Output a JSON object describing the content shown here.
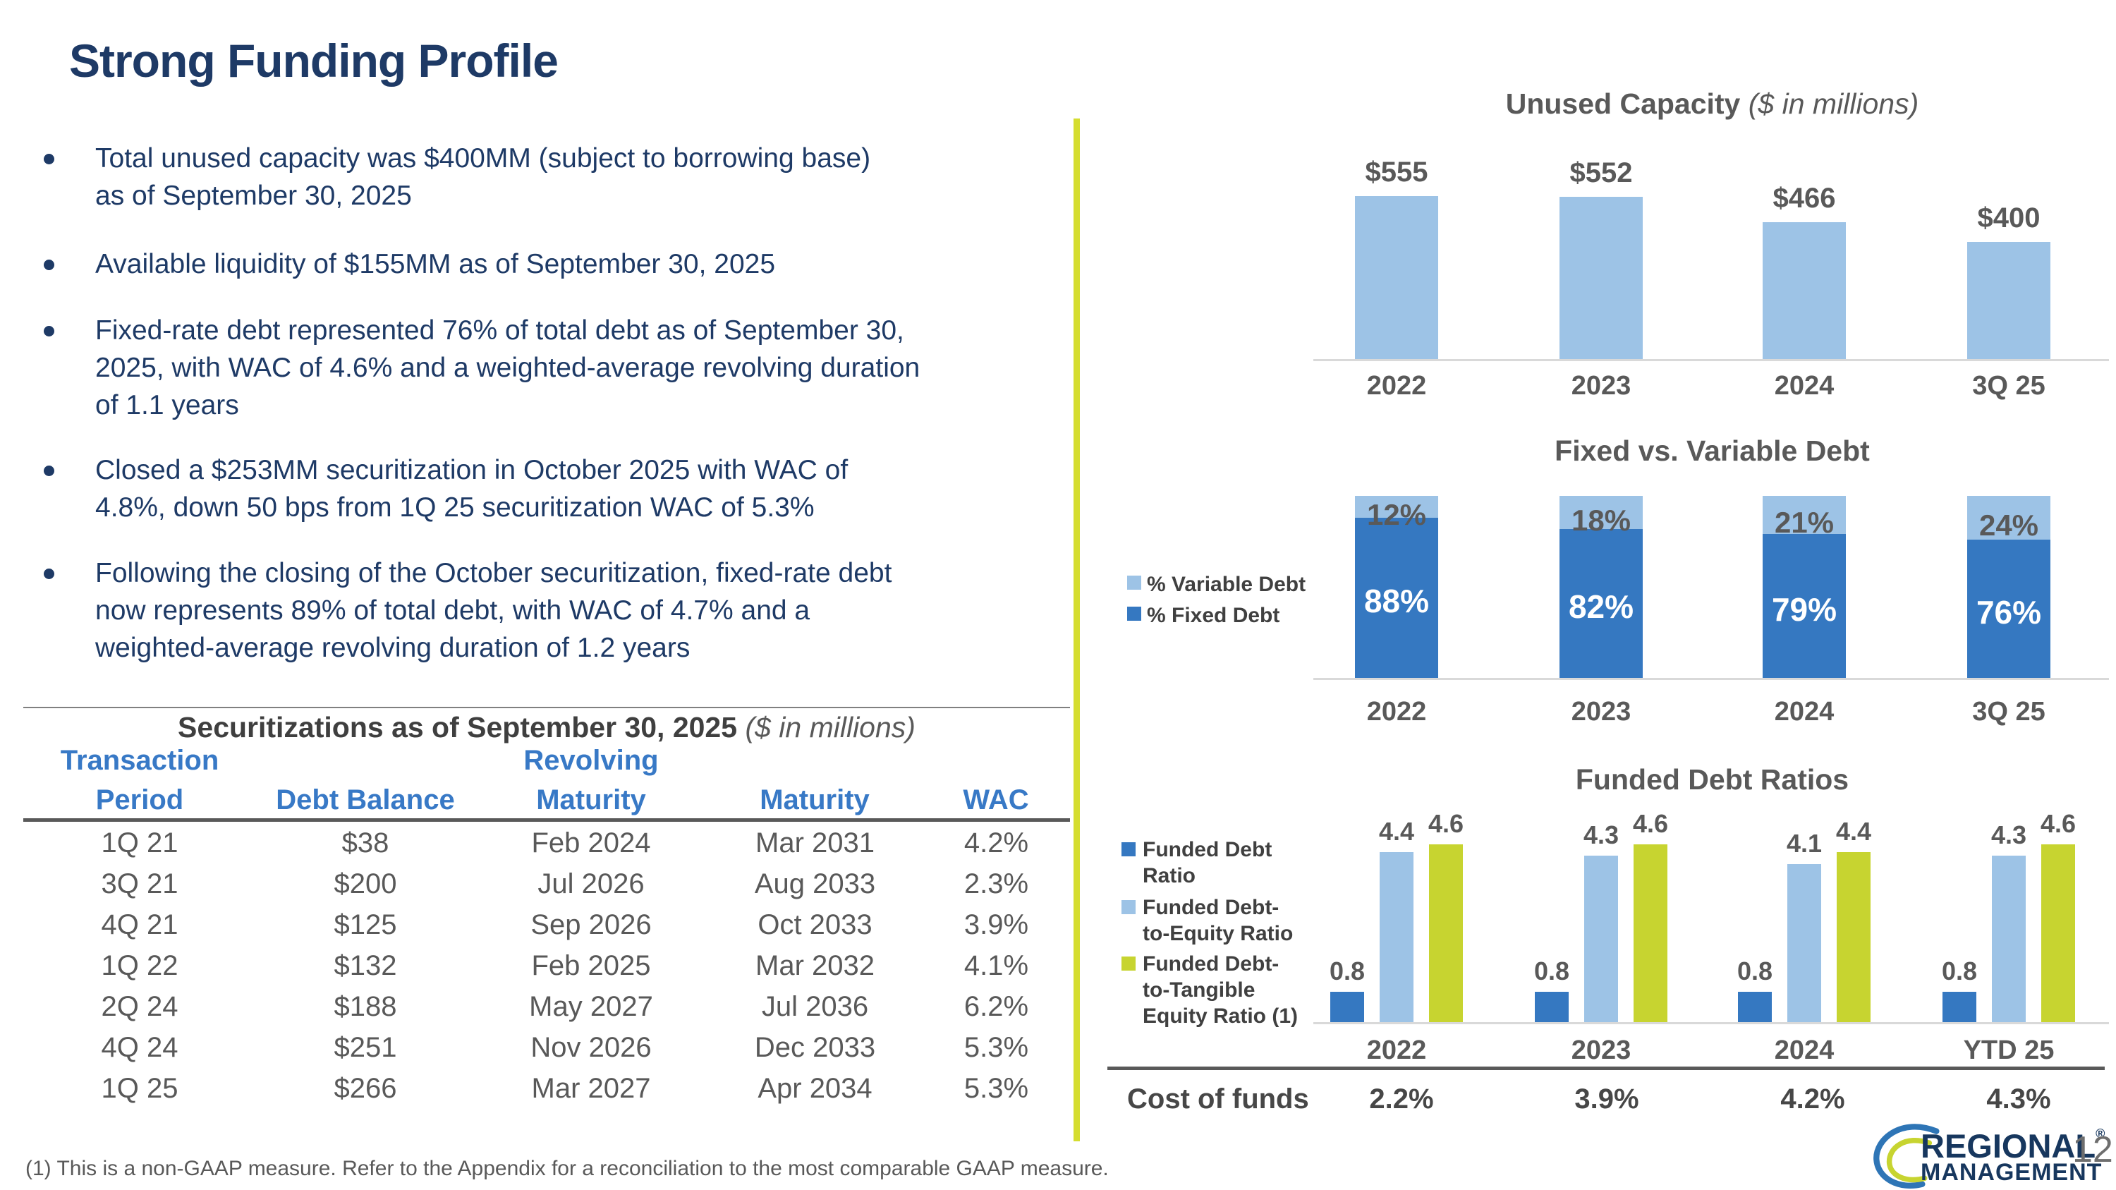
{
  "slide": {
    "title": "Strong Funding Profile",
    "page_number": "12",
    "footnote": "(1) This is a non-GAAP measure. Refer to the Appendix for a reconciliation to the most comparable GAAP measure.",
    "logo": {
      "line1": "REGIONAL",
      "reg_mark": "®",
      "line2": "MANAGEMENT"
    }
  },
  "bullets": [
    {
      "lines": [
        "Total unused capacity was $400MM (subject to borrowing base)",
        "as of September 30, 2025"
      ]
    },
    {
      "lines": [
        "Available liquidity of $155MM as of September 30, 2025"
      ]
    },
    {
      "lines": [
        "Fixed-rate debt represented 76% of total debt as of September 30,",
        "2025, with WAC of 4.6% and a weighted-average revolving duration",
        "of 1.1 years"
      ]
    },
    {
      "lines": [
        "Closed a $253MM securitization in October 2025 with WAC of",
        "4.8%, down 50 bps from 1Q 25 securitization WAC of 5.3%"
      ]
    },
    {
      "lines": [
        "Following the closing of the October securitization, fixed-rate debt",
        "now represents 89% of total debt, with WAC of 4.7% and a",
        "weighted-average revolving duration of 1.2 years"
      ]
    }
  ],
  "securitizations_table": {
    "title": "Securitizations as of September 30, 2025",
    "title_suffix": " ($ in millions)",
    "headers": {
      "col1_line1": "Transaction",
      "col1_line2": "Period",
      "col2": "Debt Balance",
      "col3_line1": "Revolving",
      "col3_line2": "Maturity",
      "col4": "Maturity",
      "col5": "WAC"
    },
    "rows": [
      {
        "period": "1Q 21",
        "debt_balance": "$38",
        "revolving_maturity": "Feb 2024",
        "maturity": "Mar 2031",
        "wac": "4.2%"
      },
      {
        "period": "3Q 21",
        "debt_balance": "$200",
        "revolving_maturity": "Jul 2026",
        "maturity": "Aug 2033",
        "wac": "2.3%"
      },
      {
        "period": "4Q 21",
        "debt_balance": "$125",
        "revolving_maturity": "Sep 2026",
        "maturity": "Oct 2033",
        "wac": "3.9%"
      },
      {
        "period": "1Q 22",
        "debt_balance": "$132",
        "revolving_maturity": "Feb 2025",
        "maturity": "Mar 2032",
        "wac": "4.1%"
      },
      {
        "period": "2Q 24",
        "debt_balance": "$188",
        "revolving_maturity": "May 2027",
        "maturity": "Jul 2036",
        "wac": "6.2%"
      },
      {
        "period": "4Q 24",
        "debt_balance": "$251",
        "revolving_maturity": "Nov 2026",
        "maturity": "Dec 2033",
        "wac": "5.3%"
      },
      {
        "period": "1Q 25",
        "debt_balance": "$266",
        "revolving_maturity": "Mar 2027",
        "maturity": "Apr 2034",
        "wac": "5.3%"
      }
    ]
  },
  "chart_data": [
    {
      "id": "unused_capacity",
      "type": "bar",
      "title": "Unused Capacity",
      "title_suffix": " ($ in millions)",
      "categories": [
        "2022",
        "2023",
        "2024",
        "3Q 25"
      ],
      "values": [
        555,
        552,
        466,
        400
      ],
      "value_labels": [
        "$555",
        "$552",
        "$466",
        "$400"
      ],
      "bar_color": "#9DC3E6",
      "ylim": [
        0,
        600
      ],
      "gridlines": false,
      "legend": "none"
    },
    {
      "id": "fixed_vs_variable",
      "type": "stacked-bar",
      "title": "Fixed vs. Variable Debt",
      "categories": [
        "2022",
        "2023",
        "2024",
        "3Q 25"
      ],
      "series": [
        {
          "name": "% Variable Debt",
          "color": "#9DC3E6",
          "values": [
            12,
            18,
            21,
            24
          ],
          "value_labels": [
            "12%",
            "18%",
            "21%",
            "24%"
          ]
        },
        {
          "name": "% Fixed Debt",
          "color": "#3578C1",
          "values": [
            88,
            82,
            79,
            76
          ],
          "value_labels": [
            "88%",
            "82%",
            "79%",
            "76%"
          ]
        }
      ],
      "legend": "left",
      "ylim": [
        0,
        100
      ],
      "gridlines": false
    },
    {
      "id": "funded_debt_ratios",
      "type": "grouped-bar",
      "title": "Funded Debt Ratios",
      "categories": [
        "2022",
        "2023",
        "2024",
        "YTD 25"
      ],
      "series": [
        {
          "name": "Funded Debt Ratio",
          "legend_lines": [
            "Funded Debt",
            "Ratio"
          ],
          "color": "#3578C1",
          "values": [
            0.8,
            0.8,
            0.8,
            0.8
          ]
        },
        {
          "name": "Funded Debt-to-Equity Ratio",
          "legend_lines": [
            "Funded Debt-",
            "to-Equity Ratio"
          ],
          "color": "#9DC3E6",
          "values": [
            4.4,
            4.3,
            4.1,
            4.3
          ]
        },
        {
          "name": "Funded Debt-to-Tangible Equity Ratio (1)",
          "legend_lines": [
            "Funded Debt-",
            "to-Tangible",
            "Equity Ratio (1)"
          ],
          "color": "#C7D430",
          "values": [
            4.6,
            4.6,
            4.4,
            4.6
          ]
        }
      ],
      "legend": "left",
      "ylim": [
        0,
        5
      ],
      "gridlines": false
    }
  ],
  "cost_of_funds": {
    "label": "Cost of funds",
    "values": [
      "2.2%",
      "3.9%",
      "4.2%",
      "4.3%"
    ]
  },
  "colors": {
    "navy_text": "#1E3A66",
    "table_header_blue": "#3879C6",
    "gray_text": "#595959",
    "medium_blue_bar": "#3578C1",
    "light_blue_bar": "#9DC3E6",
    "green_bar": "#C7D430",
    "divider_green": "#D5DD30",
    "axis_gray": "#D9D9D9",
    "logo_navy": "#17375E",
    "logo_blue": "#2E75B6",
    "logo_green": "#C7D430"
  }
}
